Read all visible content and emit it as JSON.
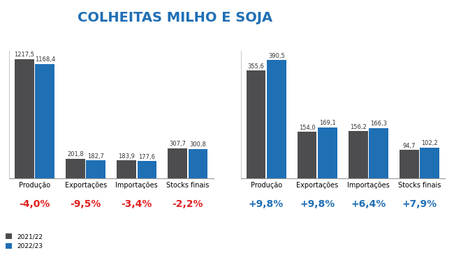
{
  "title": "COLHEITAS MILHO E SOJA",
  "chart_data": [
    {
      "type": "bar",
      "categories": [
        "Produção",
        "Exportações",
        "Importações",
        "Stocks finais"
      ],
      "series": [
        {
          "name": "2021/22",
          "color": "#4d4d4f",
          "values": [
            1217.5,
            201.8,
            183.9,
            307.7
          ],
          "value_labels": [
            "1217,5",
            "201,8",
            "183,9",
            "307,7"
          ]
        },
        {
          "name": "2022/23",
          "color": "#1f6fb5",
          "values": [
            1168.4,
            182.7,
            177.6,
            300.8
          ],
          "value_labels": [
            "1168,4",
            "182,7",
            "177,6",
            "300,8"
          ]
        }
      ],
      "annotations": [
        "-4,0%",
        "-9,5%",
        "-3,4%",
        "-2,2%"
      ],
      "ylim": [
        0,
        1300
      ],
      "data_labels": true,
      "tick_labels": "x",
      "legend": "lower left"
    },
    {
      "type": "bar",
      "categories": [
        "Produção",
        "Exportações",
        "Importações",
        "Stocks finais"
      ],
      "series": [
        {
          "name": "2021/22",
          "color": "#4d4d4f",
          "values": [
            355.6,
            154.0,
            156.2,
            94.7
          ],
          "value_labels": [
            "355,6",
            "154,0",
            "156,2",
            "94,7"
          ]
        },
        {
          "name": "2022/23",
          "color": "#1f6fb5",
          "values": [
            390.5,
            169.1,
            166.3,
            102.2
          ],
          "value_labels": [
            "390,5",
            "169,1",
            "166,3",
            "102,2"
          ]
        }
      ],
      "annotations": [
        "+9,8%",
        "+9,8%",
        "+6,4%",
        "+7,9%"
      ],
      "ylim": [
        0,
        420
      ],
      "data_labels": true,
      "tick_labels": "x"
    }
  ]
}
